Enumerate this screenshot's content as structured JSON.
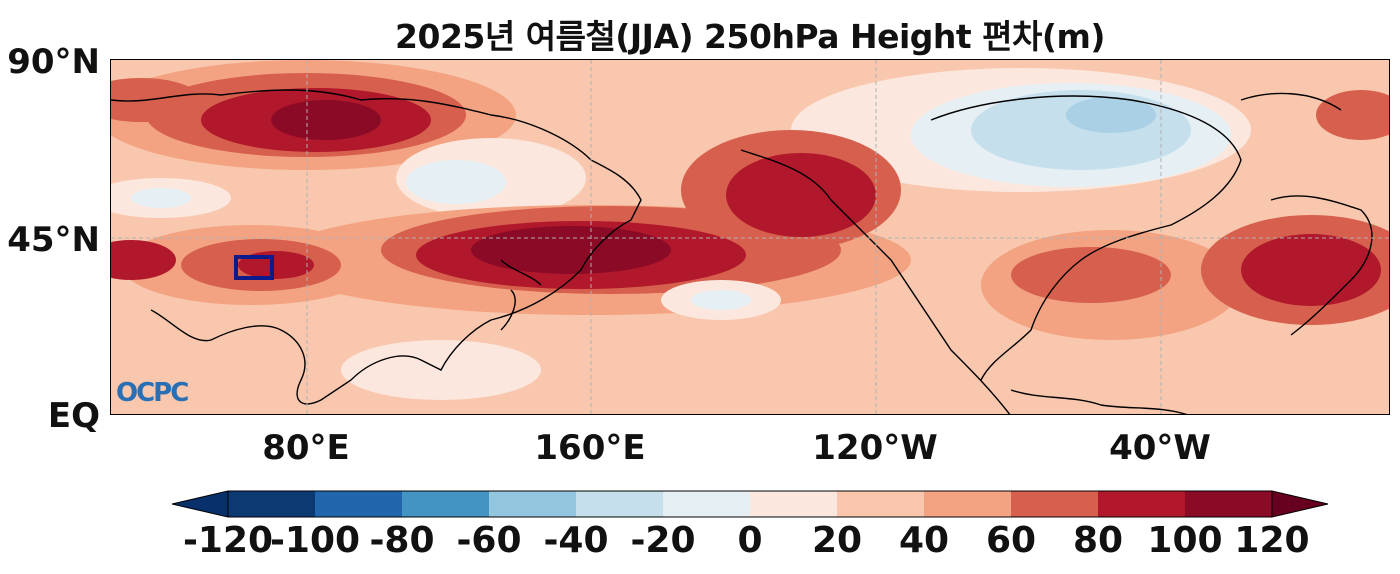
{
  "title": "2025년 여름철(JJA) 250hPa Height 편차(m)",
  "logo_text": "OCPC",
  "y_axis": {
    "labels": [
      "90°N",
      "45°N",
      "EQ"
    ]
  },
  "x_axis": {
    "labels": [
      "80°E",
      "160°E",
      "120°W",
      "40°W"
    ]
  },
  "colorbar": {
    "ticks": [
      "-120",
      "-100",
      "-80",
      "-60",
      "-40",
      "-20",
      "0",
      "20",
      "40",
      "60",
      "80",
      "100",
      "120"
    ],
    "colors": [
      "#0b3a73",
      "#2166ac",
      "#4393c3",
      "#92c5de",
      "#c6dfec",
      "#e6f0f4",
      "#fbe7dd",
      "#f9c7ad",
      "#f3a382",
      "#d6604d",
      "#b2182b",
      "#8b0a26"
    ],
    "extend_low": "#08306b",
    "extend_high": "#67001f"
  },
  "highlight_box": {
    "color": "#0b1a8c"
  },
  "colors": {
    "background_anomaly": "#f9c7ad",
    "land_outline": "#000000",
    "grid": "#b0b0b0"
  }
}
